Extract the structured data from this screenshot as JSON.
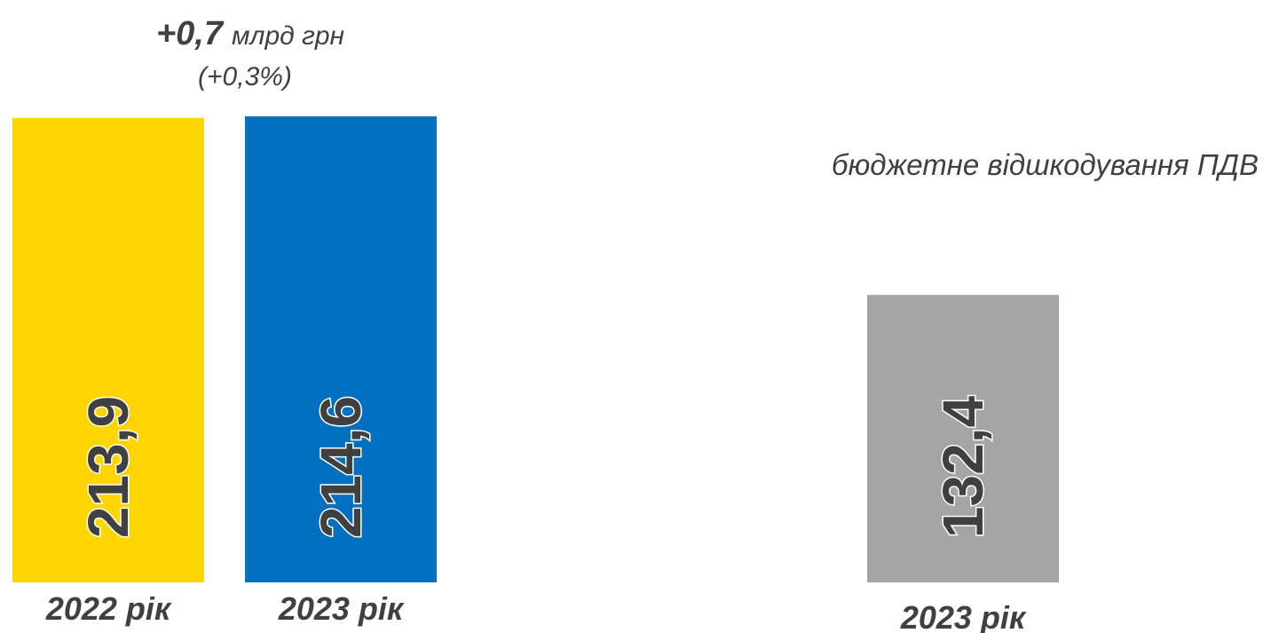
{
  "chart_data": [
    {
      "type": "bar",
      "categories": [
        "2022 рік",
        "2023 рік"
      ],
      "values": [
        213.9,
        214.6
      ],
      "value_labels": [
        "213,9",
        "214,6"
      ],
      "colors": [
        "#ffd500",
        "#0070c0"
      ],
      "annotation": {
        "value": "+0,7",
        "unit": "млрд грн",
        "percent": "(+0,3%)"
      },
      "grid": false,
      "legend": "none"
    },
    {
      "type": "bar",
      "title": "бюджетне відшкодування ПДВ",
      "categories": [
        "2023 рік"
      ],
      "values": [
        132.4
      ],
      "value_labels": [
        "132,4"
      ],
      "colors": [
        "#a5a5a5"
      ],
      "grid": false,
      "legend": "none"
    }
  ]
}
